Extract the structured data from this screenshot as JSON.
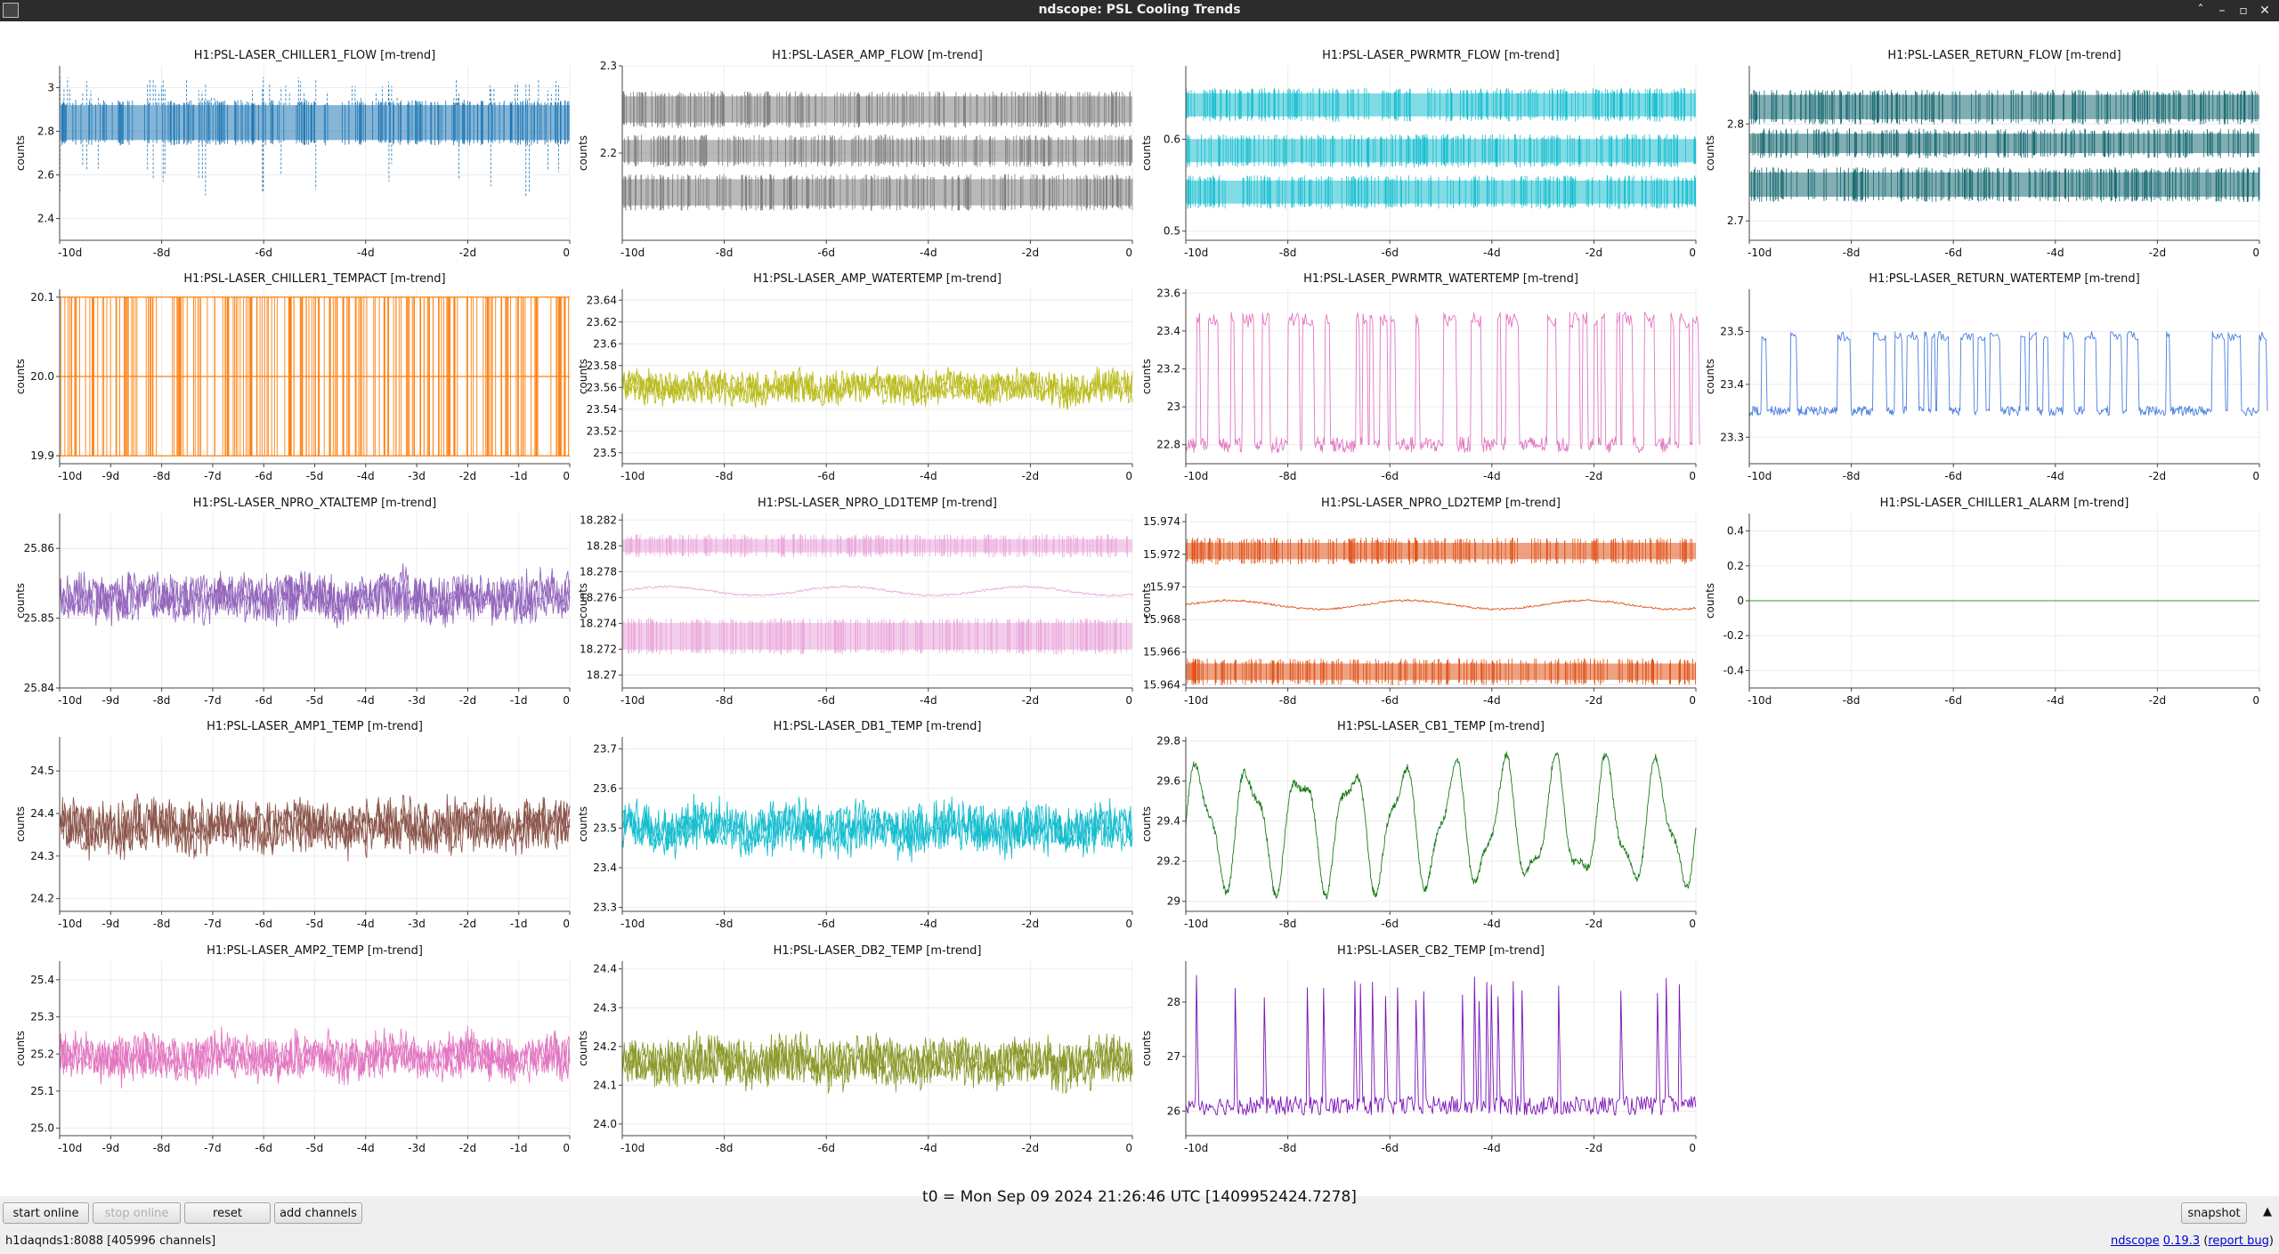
{
  "window": {
    "title": "ndscope: PSL Cooling Trends",
    "controls": [
      "ˆ",
      "–",
      "▫",
      "✕"
    ]
  },
  "y_label": "counts",
  "t0_text": "t0 = Mon Sep 09 2024 21:26:46 UTC [1409952424.7278]",
  "buttons": {
    "start_online": "start online",
    "stop_online": "stop online",
    "reset": "reset",
    "add_channels": "add channels",
    "snapshot": "snapshot"
  },
  "status": {
    "server": "h1daqnds1:8088  [405996 channels]",
    "app_name": "ndscope",
    "version": "0.19.3",
    "report_bug": "report bug"
  },
  "chart_data": [
    {
      "type": "line",
      "title": "H1:PSL-LASER_CHILLER1_FLOW [m-trend]",
      "color": "#1f77b4",
      "style": "bands",
      "ylim": [
        2.3,
        3.1
      ],
      "yticks": [
        "2.4",
        "2.6",
        "2.8",
        "3"
      ],
      "xticks": [
        "-10d",
        "-8d",
        "-6d",
        "-4d",
        "-2d",
        "0"
      ],
      "bands": [
        [
          2.76,
          2.92
        ]
      ],
      "spikes": [
        2.5,
        3.05
      ]
    },
    {
      "type": "line",
      "title": "H1:PSL-LASER_AMP_FLOW [m-trend]",
      "color": "#7f7f7f",
      "style": "bands",
      "ylim": [
        2.1,
        2.3
      ],
      "yticks": [
        "2.2",
        "2.3"
      ],
      "xticks": [
        "-10d",
        "-8d",
        "-6d",
        "-4d",
        "-2d",
        "0"
      ],
      "bands": [
        [
          2.235,
          2.265
        ],
        [
          2.19,
          2.215
        ],
        [
          2.14,
          2.17
        ]
      ]
    },
    {
      "type": "line",
      "title": "H1:PSL-LASER_PWRMTR_FLOW [m-trend]",
      "color": "#17becf",
      "style": "bands",
      "ylim": [
        0.49,
        0.68
      ],
      "yticks": [
        "0.5",
        "0.6"
      ],
      "xticks": [
        "-10d",
        "-8d",
        "-6d",
        "-4d",
        "-2d",
        "0"
      ],
      "bands": [
        [
          0.625,
          0.65
        ],
        [
          0.575,
          0.6
        ],
        [
          0.53,
          0.555
        ]
      ]
    },
    {
      "type": "line",
      "title": "H1:PSL-LASER_RETURN_FLOW [m-trend]",
      "color": "#1a6b73",
      "style": "bands",
      "ylim": [
        2.68,
        2.86
      ],
      "yticks": [
        "2.7",
        "2.8"
      ],
      "xticks": [
        "-10d",
        "-8d",
        "-6d",
        "-4d",
        "-2d",
        "0"
      ],
      "bands": [
        [
          2.805,
          2.83
        ],
        [
          2.77,
          2.79
        ],
        [
          2.725,
          2.75
        ]
      ]
    },
    {
      "type": "line",
      "title": "H1:PSL-LASER_CHILLER1_TEMPACT [m-trend]",
      "color": "#ff7f0e",
      "style": "toggle",
      "ylim": [
        19.89,
        20.11
      ],
      "yticks": [
        "19.9",
        "20.0",
        "20.1"
      ],
      "xticks": [
        "-10d",
        "-9d",
        "-8d",
        "-7d",
        "-6d",
        "-5d",
        "-4d",
        "-3d",
        "-2d",
        "-1d",
        "0"
      ],
      "levels": [
        19.9,
        20.0,
        20.1
      ]
    },
    {
      "type": "line",
      "title": "H1:PSL-LASER_AMP_WATERTEMP [m-trend]",
      "color": "#bcbd22",
      "style": "noise",
      "ylim": [
        23.49,
        23.65
      ],
      "yticks": [
        "23.5",
        "23.52",
        "23.54",
        "23.56",
        "23.58",
        "23.6",
        "23.62",
        "23.64"
      ],
      "xticks": [
        "-10d",
        "-8d",
        "-6d",
        "-4d",
        "-2d",
        "0"
      ],
      "center": 23.56,
      "amp": 0.018
    },
    {
      "type": "line",
      "title": "H1:PSL-LASER_PWRMTR_WATERTEMP [m-trend]",
      "color": "#e377c2",
      "style": "pulses",
      "ylim": [
        22.7,
        23.62
      ],
      "yticks": [
        "22.8",
        "23",
        "23.2",
        "23.4",
        "23.6"
      ],
      "xticks": [
        "-10d",
        "-8d",
        "-6d",
        "-4d",
        "-2d",
        "0"
      ],
      "base": 22.8,
      "peak": 23.5
    },
    {
      "type": "line",
      "title": "H1:PSL-LASER_RETURN_WATERTEMP [m-trend]",
      "color": "#4c7fe0",
      "style": "pulses",
      "ylim": [
        23.25,
        23.58
      ],
      "yticks": [
        "23.3",
        "23.4",
        "23.5"
      ],
      "xticks": [
        "-10d",
        "-8d",
        "-6d",
        "-4d",
        "-2d",
        "0"
      ],
      "base": 23.35,
      "peak": 23.5
    },
    {
      "type": "line",
      "title": "H1:PSL-LASER_NPRO_XTALTEMP [m-trend]",
      "color": "#9467bd",
      "style": "noise",
      "ylim": [
        25.84,
        25.865
      ],
      "yticks": [
        "25.84",
        "25.85",
        "25.86"
      ],
      "xticks": [
        "-10d",
        "-9d",
        "-8d",
        "-7d",
        "-6d",
        "-5d",
        "-4d",
        "-3d",
        "-2d",
        "-1d",
        "0"
      ],
      "center": 25.853,
      "amp": 0.004
    },
    {
      "type": "line",
      "title": "H1:PSL-LASER_NPRO_LD1TEMP [m-trend]",
      "color": "#eaa6da",
      "style": "bands_center",
      "ylim": [
        18.269,
        18.2825
      ],
      "yticks": [
        "18.27",
        "18.272",
        "18.274",
        "18.276",
        "18.278",
        "18.28",
        "18.282"
      ],
      "xticks": [
        "-10d",
        "-8d",
        "-6d",
        "-4d",
        "-2d",
        "0"
      ],
      "bands": [
        [
          18.2795,
          18.2805
        ],
        [
          18.272,
          18.274
        ]
      ],
      "center": 18.2765
    },
    {
      "type": "line",
      "title": "H1:PSL-LASER_NPRO_LD2TEMP [m-trend]",
      "color": "#e0531a",
      "style": "bands_center",
      "ylim": [
        15.9638,
        15.9745
      ],
      "yticks": [
        "15.964",
        "15.966",
        "15.968",
        "15.97",
        "15.972",
        "15.974"
      ],
      "xticks": [
        "-10d",
        "-8d",
        "-6d",
        "-4d",
        "-2d",
        "0"
      ],
      "bands": [
        [
          15.9717,
          15.9727
        ],
        [
          15.9643,
          15.9653
        ]
      ],
      "center": 15.9689
    },
    {
      "type": "line",
      "title": "H1:PSL-LASER_CHILLER1_ALARM [m-trend]",
      "color": "#2ca02c",
      "style": "flat",
      "ylim": [
        -0.5,
        0.5
      ],
      "yticks": [
        "-0.4",
        "-0.2",
        "0",
        "0.2",
        "0.4"
      ],
      "xticks": [
        "-10d",
        "-8d",
        "-6d",
        "-4d",
        "-2d",
        "0"
      ],
      "value": 0
    },
    {
      "type": "line",
      "title": "H1:PSL-LASER_AMP1_TEMP [m-trend]",
      "color": "#8c564b",
      "style": "noise",
      "ylim": [
        24.17,
        24.58
      ],
      "yticks": [
        "24.2",
        "24.3",
        "24.4",
        "24.5"
      ],
      "xticks": [
        "-10d",
        "-9d",
        "-8d",
        "-7d",
        "-6d",
        "-5d",
        "-4d",
        "-3d",
        "-2d",
        "-1d",
        "0"
      ],
      "center": 24.37,
      "amp": 0.07
    },
    {
      "type": "line",
      "title": "H1:PSL-LASER_DB1_TEMP [m-trend]",
      "color": "#17becf",
      "style": "noise",
      "ylim": [
        23.29,
        23.73
      ],
      "yticks": [
        "23.3",
        "23.4",
        "23.5",
        "23.6",
        "23.7"
      ],
      "xticks": [
        "-10d",
        "-8d",
        "-6d",
        "-4d",
        "-2d",
        "0"
      ],
      "center": 23.5,
      "amp": 0.07
    },
    {
      "type": "line",
      "title": "H1:PSL-LASER_CB1_TEMP [m-trend]",
      "color": "#1b7d1b",
      "style": "sine",
      "ylim": [
        28.95,
        29.82
      ],
      "yticks": [
        "29",
        "29.2",
        "29.4",
        "29.6",
        "29.8"
      ],
      "xticks": [
        "-10d",
        "-8d",
        "-6d",
        "-4d",
        "-2d",
        "0"
      ],
      "center": 29.38,
      "amp": 0.3
    },
    null,
    {
      "type": "line",
      "title": "H1:PSL-LASER_AMP2_TEMP [m-trend]",
      "color": "#e377c2",
      "style": "noise",
      "ylim": [
        24.98,
        25.45
      ],
      "yticks": [
        "25.0",
        "25.1",
        "25.2",
        "25.3",
        "25.4"
      ],
      "xticks": [
        "-10d",
        "-9d",
        "-8d",
        "-7d",
        "-6d",
        "-5d",
        "-4d",
        "-3d",
        "-2d",
        "-1d",
        "0"
      ],
      "center": 25.19,
      "amp": 0.07
    },
    {
      "type": "line",
      "title": "H1:PSL-LASER_DB2_TEMP [m-trend]",
      "color": "#8c9a2c",
      "style": "noise",
      "ylim": [
        23.97,
        24.42
      ],
      "yticks": [
        "24.0",
        "24.1",
        "24.2",
        "24.3",
        "24.4"
      ],
      "xticks": [
        "-10d",
        "-8d",
        "-6d",
        "-4d",
        "-2d",
        "0"
      ],
      "center": 24.16,
      "amp": 0.07
    },
    {
      "type": "line",
      "title": "H1:PSL-LASER_CB2_TEMP [m-trend]",
      "color": "#7b12b8",
      "style": "spikes",
      "ylim": [
        25.55,
        28.75
      ],
      "yticks": [
        "26",
        "27",
        "28"
      ],
      "xticks": [
        "-10d",
        "-8d",
        "-6d",
        "-4d",
        "-2d",
        "0"
      ],
      "base": 26.1,
      "peak": 28.5
    },
    null
  ]
}
